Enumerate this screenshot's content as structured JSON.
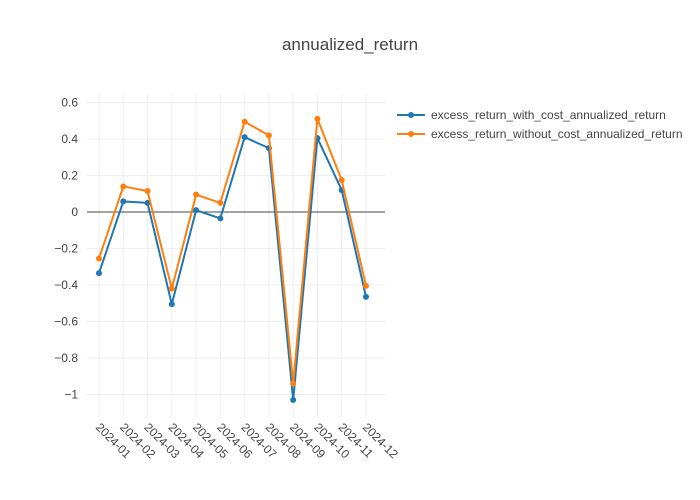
{
  "chart_data": {
    "type": "line",
    "title": "annualized_return",
    "xlabel": "",
    "ylabel": "",
    "categories": [
      "2024-01",
      "2024-02",
      "2024-03",
      "2024-04",
      "2024-05",
      "2024-06",
      "2024-07",
      "2024-08",
      "2024-09",
      "2024-10",
      "2024-11",
      "2024-12"
    ],
    "ylim": [
      -1.13,
      0.6
    ],
    "yticks": [
      0.6,
      0.4,
      0.2,
      0,
      -0.2,
      -0.4,
      -0.6,
      -0.8,
      -1
    ],
    "ytick_labels": [
      "0.6",
      "0.4",
      "0.2",
      "0",
      "−0.2",
      "−0.4",
      "−0.6",
      "−0.8",
      "−1"
    ],
    "grid": true,
    "legend_position": "top-right",
    "series": [
      {
        "name": "excess_return_with_cost_annualized_return",
        "color": "#1f77b4",
        "values": [
          -0.335,
          0.058,
          0.05,
          -0.505,
          0.01,
          -0.035,
          0.41,
          0.35,
          -1.03,
          0.405,
          0.12,
          -0.465
        ]
      },
      {
        "name": "excess_return_without_cost_annualized_return",
        "color": "#ff7f0e",
        "values": [
          -0.255,
          0.14,
          0.115,
          -0.42,
          0.095,
          0.05,
          0.495,
          0.42,
          -0.94,
          0.51,
          0.175,
          -0.405
        ]
      }
    ]
  }
}
